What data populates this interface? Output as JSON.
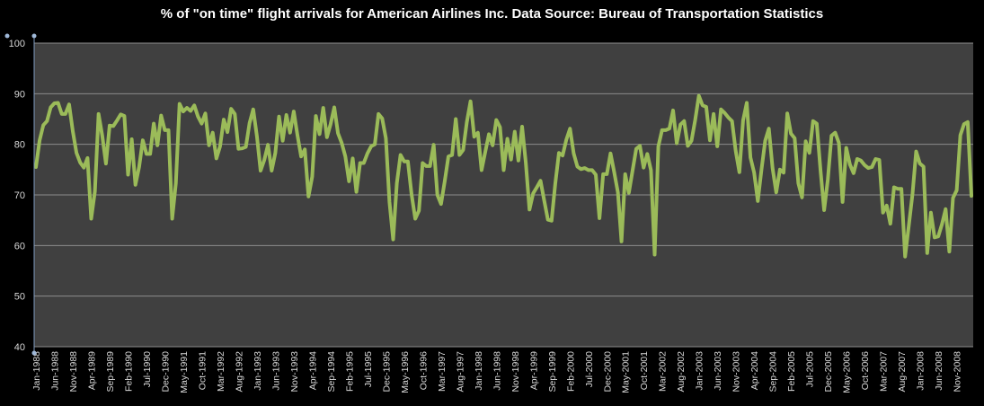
{
  "chart_data": {
    "type": "line",
    "title": "% of \"on time\" flight arrivals for American Airlines Inc. Data Source: Bureau of Transportation Statistics",
    "xlabel": "",
    "ylabel": "",
    "ylim": [
      40,
      100
    ],
    "yticks": [
      40,
      50,
      60,
      70,
      80,
      90,
      100
    ],
    "grid": true,
    "legend": "none",
    "colors": {
      "background": "#000000",
      "plot_area": "#404040",
      "gridline": "#8c8c8c",
      "line": "#9bbb59",
      "text": "#ffffff",
      "tick_text": "#d8d8d8"
    },
    "x_tick_labels": [
      "Jan-1988",
      "Jun-1988",
      "Nov-1988",
      "Apr-1989",
      "Sep-1989",
      "Feb-1990",
      "Jul-1990",
      "Dec-1990",
      "May-1991",
      "Oct-1991",
      "Mar-1992",
      "Aug-1992",
      "Jan-1993",
      "Jun-1993",
      "Nov-1993",
      "Apr-1994",
      "Sep-1994",
      "Feb-1995",
      "Jul-1995",
      "Dec-1995",
      "May-1996",
      "Oct-1996",
      "Mar-1997",
      "Aug-1997",
      "Jan-1998",
      "Jun-1998",
      "Nov-1998",
      "Apr-1999",
      "Sep-1999",
      "Feb-2000",
      "Jul-2000",
      "Dec-2000",
      "May-2001",
      "Oct-2001",
      "Mar-2002",
      "Aug-2002",
      "Jan-2003",
      "Jun-2003",
      "Nov-2003",
      "Apr-2004",
      "Sep-2004",
      "Feb-2005",
      "Jul-2005",
      "Dec-2005",
      "May-2006",
      "Oct-2006",
      "Mar-2007",
      "Aug-2007",
      "Jan-2008",
      "Jun-2008",
      "Nov-2008"
    ],
    "series": [
      {
        "start": "Jan-1988",
        "frequency": "monthly",
        "values": [
          75.5,
          80.8,
          83.8,
          84.6,
          87.3,
          88.1,
          88.2,
          86.0,
          86.0,
          87.9,
          82.6,
          78.3,
          76.4,
          75.4,
          77.3,
          65.3,
          70.7,
          86.0,
          81.7,
          76.2,
          83.7,
          83.6,
          84.7,
          85.9,
          85.6,
          74.0,
          81.0,
          72.0,
          75.5,
          80.8,
          78.1,
          78.1,
          84.1,
          79.8,
          85.7,
          82.8,
          82.8,
          65.3,
          72.3,
          88.0,
          86.5,
          87.2,
          86.6,
          87.7,
          85.5,
          84.1,
          86.1,
          79.8,
          82.3,
          77.2,
          79.6,
          84.9,
          82.4,
          87.0,
          86.0,
          79.1,
          79.2,
          79.5,
          84.2,
          86.9,
          81.6,
          74.8,
          76.9,
          79.9,
          74.8,
          78.3,
          85.5,
          80.7,
          85.8,
          82.3,
          86.5,
          81.8,
          77.6,
          79.0,
          69.7,
          73.6,
          85.6,
          82.0,
          87.2,
          81.4,
          84.0,
          87.3,
          82.2,
          80.3,
          77.6,
          72.7,
          77.2,
          70.6,
          76.3,
          76.3,
          78.2,
          79.6,
          80.0,
          86.0,
          85.1,
          81.2,
          68.6,
          61.2,
          72.3,
          77.9,
          76.6,
          76.6,
          70.1,
          65.3,
          66.9,
          76.3,
          75.7,
          75.7,
          79.9,
          70.0,
          68.2,
          72.7,
          77.6,
          77.9,
          85.0,
          77.9,
          78.9,
          84.4,
          88.5,
          81.5,
          82.3,
          74.9,
          78.5,
          82.0,
          79.8,
          84.8,
          83.4,
          74.9,
          81.1,
          77.0,
          82.5,
          76.8,
          83.5,
          76.4,
          67.1,
          70.3,
          71.5,
          72.8,
          68.9,
          65.1,
          64.9,
          72.2,
          78.3,
          77.8,
          80.9,
          83.1,
          78.2,
          75.6,
          75.1,
          75.3,
          74.9,
          74.9,
          74.0,
          65.4,
          74.1,
          74.1,
          78.2,
          74.5,
          70.5,
          60.8,
          74.1,
          70.4,
          74.8,
          79.1,
          79.7,
          75.4,
          78.1,
          74.9,
          58.2,
          79.6,
          82.8,
          82.8,
          83.1,
          86.7,
          80.2,
          83.9,
          84.6,
          79.7,
          80.7,
          84.8,
          89.6,
          87.7,
          87.4,
          80.8,
          86.0,
          79.6,
          86.9,
          86.2,
          85.3,
          84.6,
          78.7,
          74.5,
          84.7,
          88.2,
          77.4,
          74.4,
          68.8,
          75.0,
          80.7,
          83.1,
          75.3,
          70.5,
          75.0,
          74.4,
          86.1,
          82.1,
          81.2,
          72.3,
          69.5,
          80.6,
          78.3,
          84.6,
          84.1,
          75.0,
          67.0,
          73.0,
          81.7,
          82.3,
          80.3,
          68.6,
          79.3,
          76.0,
          74.3,
          77.1,
          76.8,
          75.9,
          75.3,
          75.5,
          77.1,
          76.9,
          66.5,
          67.9,
          64.3,
          71.5,
          71.2,
          71.2,
          57.8,
          63.9,
          70.1,
          78.6,
          76.2,
          75.6,
          58.5,
          66.5,
          61.6,
          61.8,
          64.2,
          67.2,
          58.8,
          69.4,
          70.9,
          81.8,
          84.0,
          84.4,
          69.8
        ]
      }
    ]
  }
}
